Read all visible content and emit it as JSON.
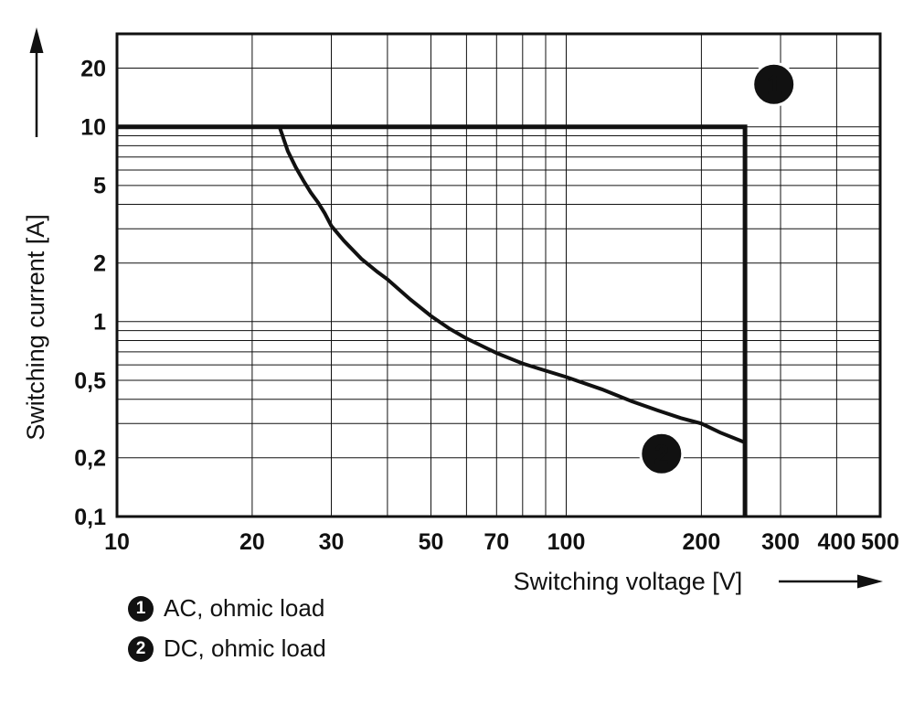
{
  "chart_data": {
    "type": "line",
    "title": "",
    "xlabel": "Switching voltage [V]",
    "ylabel": "Switching current [A]",
    "xscale": "log",
    "yscale": "log",
    "xlim": [
      10,
      500
    ],
    "ylim": [
      0.1,
      30
    ],
    "grid": true,
    "x_gridlines": [
      20,
      30,
      40,
      50,
      60,
      70,
      80,
      90,
      100,
      200,
      300,
      400
    ],
    "y_gridlines": [
      0.2,
      0.3,
      0.4,
      0.5,
      0.6,
      0.7,
      0.8,
      0.9,
      1,
      2,
      3,
      4,
      5,
      6,
      7,
      8,
      9,
      10,
      20
    ],
    "xticks": [
      {
        "value": 10,
        "label": "10"
      },
      {
        "value": 20,
        "label": "20"
      },
      {
        "value": 30,
        "label": "30"
      },
      {
        "value": 50,
        "label": "50"
      },
      {
        "value": 70,
        "label": "70"
      },
      {
        "value": 100,
        "label": "100"
      },
      {
        "value": 200,
        "label": "200"
      },
      {
        "value": 300,
        "label": "300"
      },
      {
        "value": 400,
        "label": "400"
      },
      {
        "value": 500,
        "label": "500"
      }
    ],
    "yticks": [
      {
        "value": 0.1,
        "label": "0,1"
      },
      {
        "value": 0.2,
        "label": "0,2"
      },
      {
        "value": 0.5,
        "label": "0,5"
      },
      {
        "value": 1,
        "label": "1"
      },
      {
        "value": 2,
        "label": "2"
      },
      {
        "value": 5,
        "label": "5"
      },
      {
        "value": 10,
        "label": "10"
      },
      {
        "value": 20,
        "label": "20"
      }
    ],
    "series": [
      {
        "name": "AC, ohmic load",
        "marker": "1",
        "line_width": 5,
        "points": [
          [
            10,
            10
          ],
          [
            250,
            10
          ],
          [
            250,
            0.1
          ]
        ]
      },
      {
        "name": "DC, ohmic load",
        "marker": "2",
        "line_width": 4,
        "points": [
          [
            23,
            10
          ],
          [
            24,
            7.5
          ],
          [
            25,
            6.2
          ],
          [
            26,
            5.3
          ],
          [
            27,
            4.6
          ],
          [
            28,
            4.1
          ],
          [
            29,
            3.6
          ],
          [
            30,
            3.1
          ],
          [
            32,
            2.6
          ],
          [
            35,
            2.1
          ],
          [
            38,
            1.8
          ],
          [
            40,
            1.65
          ],
          [
            45,
            1.3
          ],
          [
            50,
            1.07
          ],
          [
            55,
            0.92
          ],
          [
            60,
            0.82
          ],
          [
            65,
            0.75
          ],
          [
            70,
            0.69
          ],
          [
            80,
            0.61
          ],
          [
            90,
            0.56
          ],
          [
            100,
            0.52
          ],
          [
            120,
            0.45
          ],
          [
            140,
            0.39
          ],
          [
            160,
            0.35
          ],
          [
            180,
            0.32
          ],
          [
            200,
            0.3
          ],
          [
            220,
            0.27
          ],
          [
            250,
            0.24
          ]
        ]
      }
    ],
    "point_markers": [
      {
        "symbol": "1",
        "x": 290,
        "y": 16.5
      },
      {
        "symbol": "2",
        "x": 163,
        "y": 0.21
      }
    ],
    "legend": [
      {
        "symbol": "1",
        "label": "AC, ohmic load"
      },
      {
        "symbol": "2",
        "label": "DC, ohmic load"
      }
    ],
    "colors": {
      "line": "#111111",
      "grid": "#111111",
      "background": "#ffffff",
      "marker_fill": "#111111",
      "marker_text": "#ffffff"
    }
  }
}
